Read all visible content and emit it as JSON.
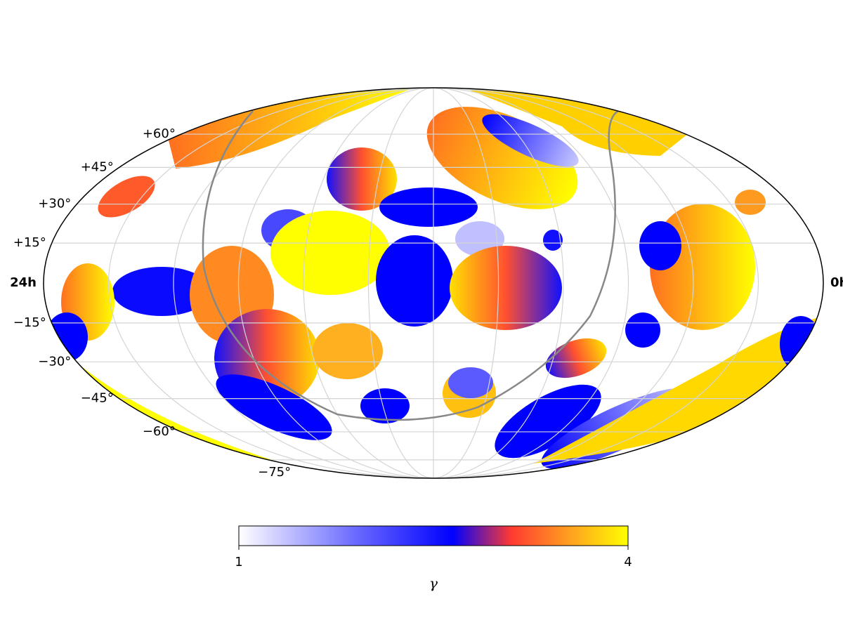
{
  "chart_data": {
    "type": "skymap",
    "xlim": [
      24,
      0
    ],
    "xticks": [
      {
        "value": 24,
        "label": "24h"
      },
      {
        "value": 0,
        "label": "0h"
      }
    ],
    "ylim": [
      -90,
      90
    ],
    "yticks": [
      {
        "value": 60,
        "label": "+60°"
      },
      {
        "value": 45,
        "label": "+45°"
      },
      {
        "value": 30,
        "label": "+30°"
      },
      {
        "value": 15,
        "label": "+15°"
      },
      {
        "value": -15,
        "label": "−15°"
      },
      {
        "value": -30,
        "label": "−30°"
      },
      {
        "value": -45,
        "label": "−45°"
      },
      {
        "value": -60,
        "label": "−60°"
      },
      {
        "value": -75,
        "label": "−75°"
      }
    ],
    "grid": true,
    "colorbar": {
      "label": "γ",
      "lim": [
        1,
        4
      ],
      "ticks": [
        1,
        4
      ]
    }
  }
}
